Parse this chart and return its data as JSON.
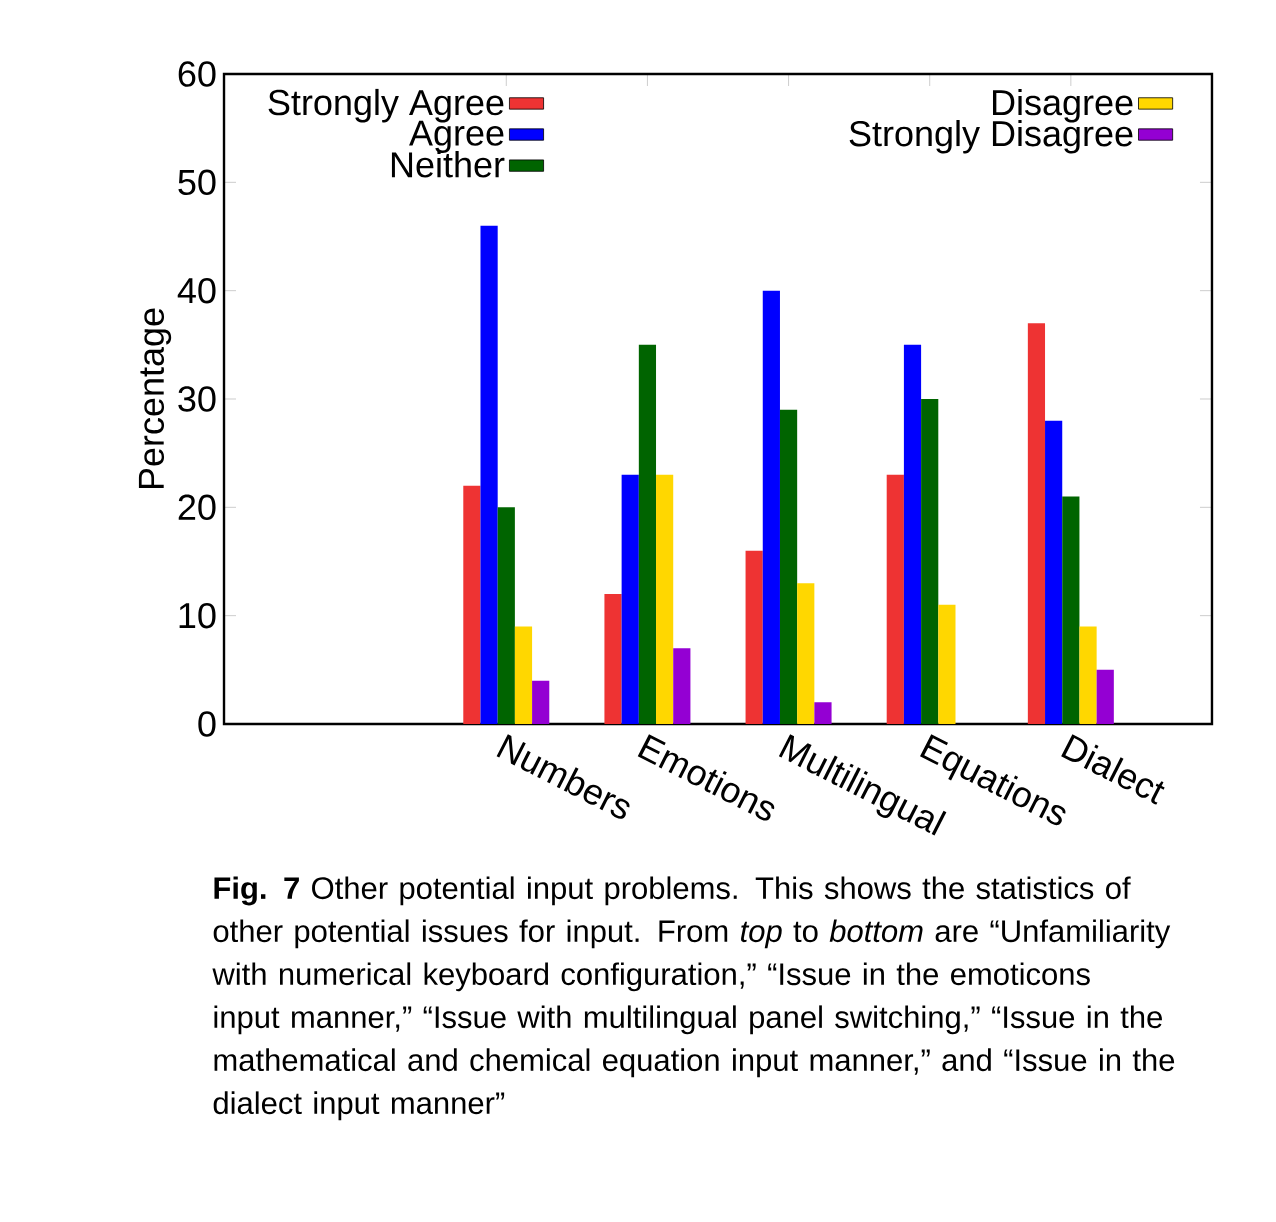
{
  "chart_data": {
    "type": "bar",
    "ylabel": "Percentage",
    "categories": [
      null,
      null,
      "Numbers",
      "Emotions",
      "Multilingual",
      "Equations",
      "Dialect"
    ],
    "series": [
      {
        "name": "Strongly Agree",
        "color": "#ee3333",
        "values": [
          null,
          null,
          22,
          12,
          16,
          23,
          37
        ]
      },
      {
        "name": "Agree",
        "color": "#0000ff",
        "values": [
          null,
          null,
          46,
          23,
          40,
          35,
          28
        ]
      },
      {
        "name": "Neither",
        "color": "#006400",
        "values": [
          null,
          null,
          20,
          35,
          29,
          30,
          21
        ]
      },
      {
        "name": "Disagree",
        "color": "#ffd700",
        "values": [
          null,
          null,
          9,
          23,
          13,
          11,
          9
        ]
      },
      {
        "name": "Strongly Disagree",
        "color": "#9400d3",
        "values": [
          null,
          null,
          4,
          7,
          2,
          0,
          5
        ]
      }
    ],
    "ylim": [
      0,
      60
    ],
    "yticks": [
      0,
      10,
      20,
      30,
      40,
      50,
      60
    ],
    "legend": "top",
    "grid": false,
    "annotations": [
      "**Fig. 7** Other potential input problems. This shows the statistics of other potential issues for input. From *top* to *bottom* are “Unfamiliarity with numerical keyboard configuration,” “Issue in the emoticons input manner,” “Issue with multilingual panel switching,” “Issue in the mathematical and chemical equation input manner,” and “Issue in the dialect input manner”"
    ]
  }
}
